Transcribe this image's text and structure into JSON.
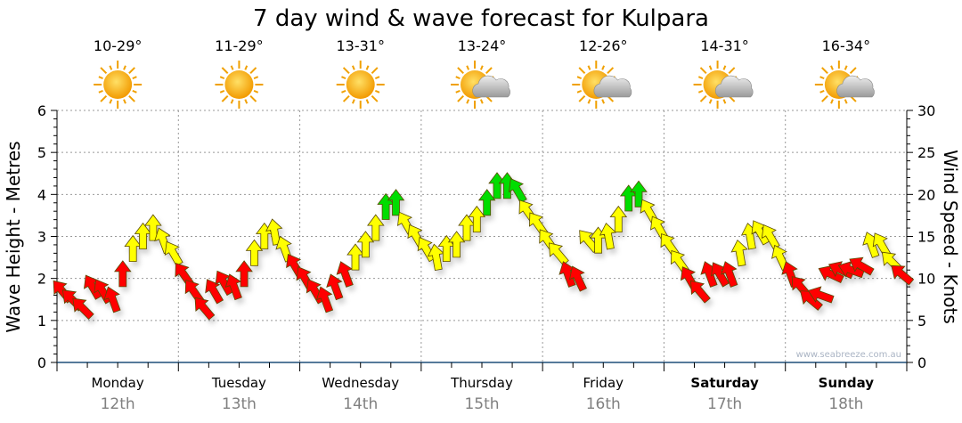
{
  "chart_data": {
    "type": "scatter",
    "title": "7 day wind & wave forecast for Kulpara",
    "ylabel_left": "Wave Height - Metres",
    "ylabel_right": "Wind Speed - Knots",
    "ylim_left": [
      0,
      6
    ],
    "ylim_right": [
      0,
      30
    ],
    "yticks_left": [
      "0",
      "1",
      "2",
      "3",
      "4",
      "5",
      "6"
    ],
    "yticks_right": [
      "0",
      "5",
      "10",
      "15",
      "20",
      "25",
      "30"
    ],
    "x_range_hours": [
      0,
      168
    ],
    "grid": true,
    "watermark": "www.seabreeze.com.au",
    "days": [
      {
        "name": "Monday",
        "date": "12th",
        "temp": "10-29°",
        "icon": "sun-icon",
        "weekend": false
      },
      {
        "name": "Tuesday",
        "date": "13th",
        "temp": "11-29°",
        "icon": "sun-icon",
        "weekend": false
      },
      {
        "name": "Wednesday",
        "date": "14th",
        "temp": "13-31°",
        "icon": "sun-icon",
        "weekend": false
      },
      {
        "name": "Thursday",
        "date": "15th",
        "temp": "13-24°",
        "icon": "partly-cloudy-icon",
        "weekend": false
      },
      {
        "name": "Friday",
        "date": "16th",
        "temp": "12-26°",
        "icon": "partly-cloudy-icon",
        "weekend": false
      },
      {
        "name": "Saturday",
        "date": "17th",
        "temp": "14-31°",
        "icon": "partly-cloudy-icon",
        "weekend": true
      },
      {
        "name": "Sunday",
        "date": "18th",
        "temp": "16-34°",
        "icon": "partly-cloudy-icon",
        "weekend": true
      }
    ],
    "wind_colors": {
      "low": "#ff0000",
      "mid": "#ffff00",
      "high": "#00dd00",
      "mid_from": 12,
      "high_from": 18.5
    },
    "wind_series": {
      "name": "Wind speed (knots) / direction arrow (degrees, 0 = pointing north)",
      "hours": [
        1,
        3,
        5,
        7,
        9,
        11,
        13,
        15,
        17,
        19,
        21,
        23,
        25,
        27,
        29,
        31,
        33,
        35,
        37,
        39,
        41,
        43,
        45,
        47,
        49,
        51,
        53,
        55,
        57,
        59,
        61,
        63,
        65,
        67,
        69,
        71,
        73,
        75,
        77,
        79,
        81,
        83,
        85,
        87,
        89,
        91,
        93,
        95,
        97,
        99,
        101,
        103,
        105,
        107,
        109,
        111,
        113,
        115,
        117,
        119,
        121,
        123,
        125,
        127,
        129,
        131,
        133,
        135,
        137,
        139,
        141,
        143,
        145,
        147,
        149,
        151,
        153,
        155,
        157,
        159,
        161,
        163,
        165,
        167
      ],
      "speed": [
        8.5,
        7.5,
        6.5,
        9,
        8.5,
        7.5,
        10.5,
        13.5,
        15,
        16,
        14.5,
        13,
        10.5,
        8.5,
        6.5,
        8.5,
        9.5,
        9,
        10.5,
        13,
        15,
        15.5,
        13.5,
        11.5,
        10,
        8.5,
        7.5,
        9,
        10.5,
        12.5,
        14,
        16,
        18.5,
        19,
        16.5,
        15,
        13.5,
        12.5,
        13.5,
        14,
        16,
        17,
        19,
        21,
        21,
        20.5,
        18,
        16.5,
        14.5,
        13,
        10.5,
        10,
        14.5,
        14.5,
        15,
        17,
        19.5,
        20,
        18,
        16,
        14,
        12,
        10,
        8.5,
        10.5,
        10.5,
        10.5,
        13,
        15,
        15.5,
        15,
        12.5,
        10.5,
        9,
        7.5,
        8,
        10.5,
        11,
        11,
        11.5,
        14,
        14,
        12,
        10.5
      ],
      "direction": [
        -40,
        -45,
        -45,
        -30,
        -30,
        -20,
        0,
        0,
        0,
        0,
        -20,
        -30,
        -35,
        -35,
        -40,
        -30,
        -30,
        -20,
        0,
        0,
        0,
        -10,
        -20,
        -30,
        -30,
        -30,
        -20,
        -20,
        -20,
        0,
        0,
        0,
        0,
        0,
        -30,
        -30,
        -30,
        -10,
        0,
        0,
        0,
        0,
        0,
        0,
        0,
        -30,
        -35,
        -35,
        -35,
        -40,
        -20,
        -25,
        -40,
        0,
        -10,
        0,
        0,
        0,
        -30,
        -30,
        -35,
        -35,
        -30,
        -40,
        -20,
        -30,
        -20,
        -10,
        -10,
        -30,
        -30,
        -25,
        -20,
        -40,
        -50,
        -70,
        -65,
        -65,
        -70,
        -60,
        -20,
        -30,
        -45,
        -50
      ]
    }
  }
}
